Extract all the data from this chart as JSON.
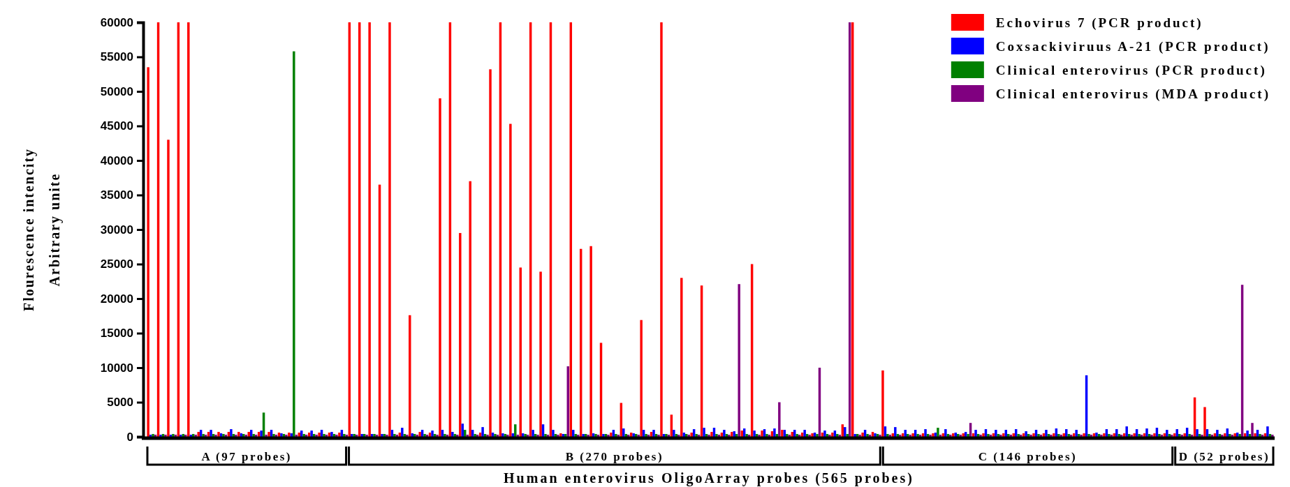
{
  "chart_data": {
    "type": "bar",
    "xlabel": "Human enterovirus OligoArray probes (565 probes)",
    "ylabel": "Flourescence intencity\nArbitrary unite",
    "categories": [
      null,
      null,
      null,
      null,
      null,
      null,
      null,
      null,
      null,
      null,
      null,
      null,
      null,
      null,
      null,
      null,
      null,
      null,
      null,
      null,
      null,
      null,
      null,
      null,
      null,
      null,
      null,
      null,
      null,
      null,
      null,
      null,
      null,
      null,
      null,
      null,
      null,
      null,
      null,
      null,
      null,
      null,
      null,
      null,
      null,
      null,
      null,
      null,
      null,
      null,
      null,
      null,
      null,
      null,
      null,
      null,
      null,
      null,
      null,
      null,
      null,
      null,
      null,
      null,
      null,
      null,
      null,
      null,
      null,
      null,
      null,
      null,
      null,
      null,
      null,
      null,
      null,
      null,
      null,
      null,
      null,
      null,
      null,
      null,
      null,
      null,
      null,
      null,
      null,
      null,
      null,
      null,
      null,
      null,
      null,
      null,
      null,
      null,
      null,
      null,
      null,
      null,
      null,
      null,
      null,
      null,
      null,
      null,
      null,
      null,
      null,
      null
    ],
    "series": [
      {
        "name": "Echovirus 7 (PCR product)",
        "color": "#ff0000",
        "values": [
          53500,
          60000,
          43000,
          60000,
          60000,
          700,
          700,
          700,
          700,
          700,
          700,
          700,
          700,
          600,
          600,
          600,
          600,
          600,
          600,
          600,
          60000,
          60000,
          60000,
          36500,
          60000,
          600,
          17600,
          700,
          600,
          49000,
          60000,
          29500,
          37000,
          600,
          53200,
          60000,
          45300,
          24500,
          60000,
          23900,
          60000,
          500,
          60000,
          27200,
          27600,
          13600,
          600,
          4900,
          600,
          16900,
          700,
          60000,
          3200,
          23000,
          600,
          21900,
          700,
          600,
          700,
          900,
          25000,
          900,
          800,
          1000,
          700,
          600,
          500,
          600,
          600,
          1800,
          60000,
          600,
          700,
          9600,
          500,
          500,
          500,
          500,
          500,
          500,
          500,
          500,
          500,
          500,
          500,
          500,
          500,
          500,
          500,
          500,
          500,
          500,
          500,
          500,
          500,
          500,
          500,
          500,
          500,
          500,
          500,
          500,
          500,
          500,
          5700,
          4300,
          500,
          500,
          500,
          500,
          500,
          500
        ]
      },
      {
        "name": "Coxsackiviruus A-21 (PCR product)",
        "color": "#0000ff",
        "values": [
          300,
          300,
          300,
          300,
          300,
          1000,
          1000,
          500,
          1100,
          500,
          1000,
          900,
          1000,
          500,
          500,
          900,
          900,
          1000,
          700,
          1000,
          400,
          400,
          400,
          400,
          1000,
          1300,
          500,
          1000,
          900,
          1000,
          700,
          1900,
          1000,
          1400,
          600,
          500,
          500,
          500,
          1000,
          1800,
          1000,
          400,
          1000,
          400,
          500,
          400,
          1000,
          1200,
          500,
          1000,
          1000,
          400,
          1000,
          600,
          1100,
          1300,
          1300,
          1000,
          800,
          1200,
          900,
          1100,
          1200,
          1000,
          1000,
          1000,
          600,
          900,
          900,
          1400,
          400,
          1000,
          500,
          1500,
          1400,
          1000,
          1000,
          1100,
          600,
          1100,
          600,
          700,
          1000,
          1100,
          1000,
          1000,
          1100,
          800,
          1000,
          1000,
          1200,
          1100,
          1000,
          8900,
          600,
          1100,
          1100,
          1500,
          1100,
          1200,
          1300,
          1000,
          1100,
          1300,
          1100,
          1100,
          1000,
          1200,
          600,
          900,
          1000,
          1500
        ]
      },
      {
        "name": "Clinical enterovirus (PCR product)",
        "color": "#008000",
        "values": [
          400,
          400,
          400,
          400,
          400,
          400,
          400,
          400,
          400,
          400,
          400,
          3500,
          400,
          400,
          55800,
          400,
          400,
          400,
          400,
          400,
          400,
          400,
          400,
          400,
          400,
          400,
          400,
          400,
          400,
          400,
          400,
          1000,
          400,
          400,
          400,
          400,
          1800,
          400,
          400,
          400,
          400,
          400,
          400,
          400,
          400,
          400,
          400,
          400,
          400,
          400,
          400,
          400,
          400,
          400,
          400,
          400,
          400,
          400,
          400,
          400,
          400,
          400,
          400,
          400,
          400,
          400,
          400,
          400,
          400,
          400,
          400,
          400,
          400,
          400,
          400,
          400,
          400,
          400,
          1300,
          400,
          400,
          400,
          400,
          400,
          400,
          400,
          400,
          400,
          400,
          400,
          400,
          400,
          400,
          400,
          400,
          400,
          400,
          400,
          400,
          400,
          400,
          400,
          400,
          400,
          400,
          400,
          400,
          400,
          400,
          400,
          400,
          400
        ]
      },
      {
        "name": "Clinical enterovirus (MDA product)",
        "color": "#800080",
        "values": [
          300,
          300,
          300,
          300,
          300,
          300,
          300,
          300,
          300,
          300,
          300,
          300,
          300,
          300,
          300,
          300,
          300,
          300,
          300,
          300,
          300,
          300,
          300,
          300,
          300,
          300,
          300,
          300,
          300,
          300,
          300,
          300,
          300,
          300,
          300,
          300,
          300,
          300,
          300,
          300,
          300,
          10200,
          300,
          300,
          300,
          300,
          300,
          300,
          300,
          300,
          300,
          300,
          300,
          300,
          300,
          300,
          300,
          300,
          22100,
          300,
          300,
          300,
          5000,
          300,
          300,
          300,
          10000,
          300,
          300,
          60000,
          300,
          300,
          300,
          300,
          300,
          300,
          300,
          300,
          300,
          300,
          300,
          2000,
          300,
          300,
          300,
          300,
          300,
          300,
          300,
          300,
          300,
          300,
          300,
          300,
          300,
          300,
          300,
          300,
          300,
          300,
          300,
          300,
          300,
          300,
          300,
          300,
          300,
          300,
          22000,
          2000,
          300,
          300
        ]
      }
    ],
    "ylim": [
      0,
      60000
    ],
    "yticks": [
      0,
      5000,
      10000,
      15000,
      20000,
      25000,
      30000,
      35000,
      40000,
      45000,
      50000,
      55000,
      60000
    ],
    "annotations": [
      "A  (97 probes)",
      "B  (270 probes)",
      "C  (146 probes)",
      "D  (52 probes)"
    ],
    "legend": "top right",
    "tick_labels": "y",
    "grid": false
  }
}
